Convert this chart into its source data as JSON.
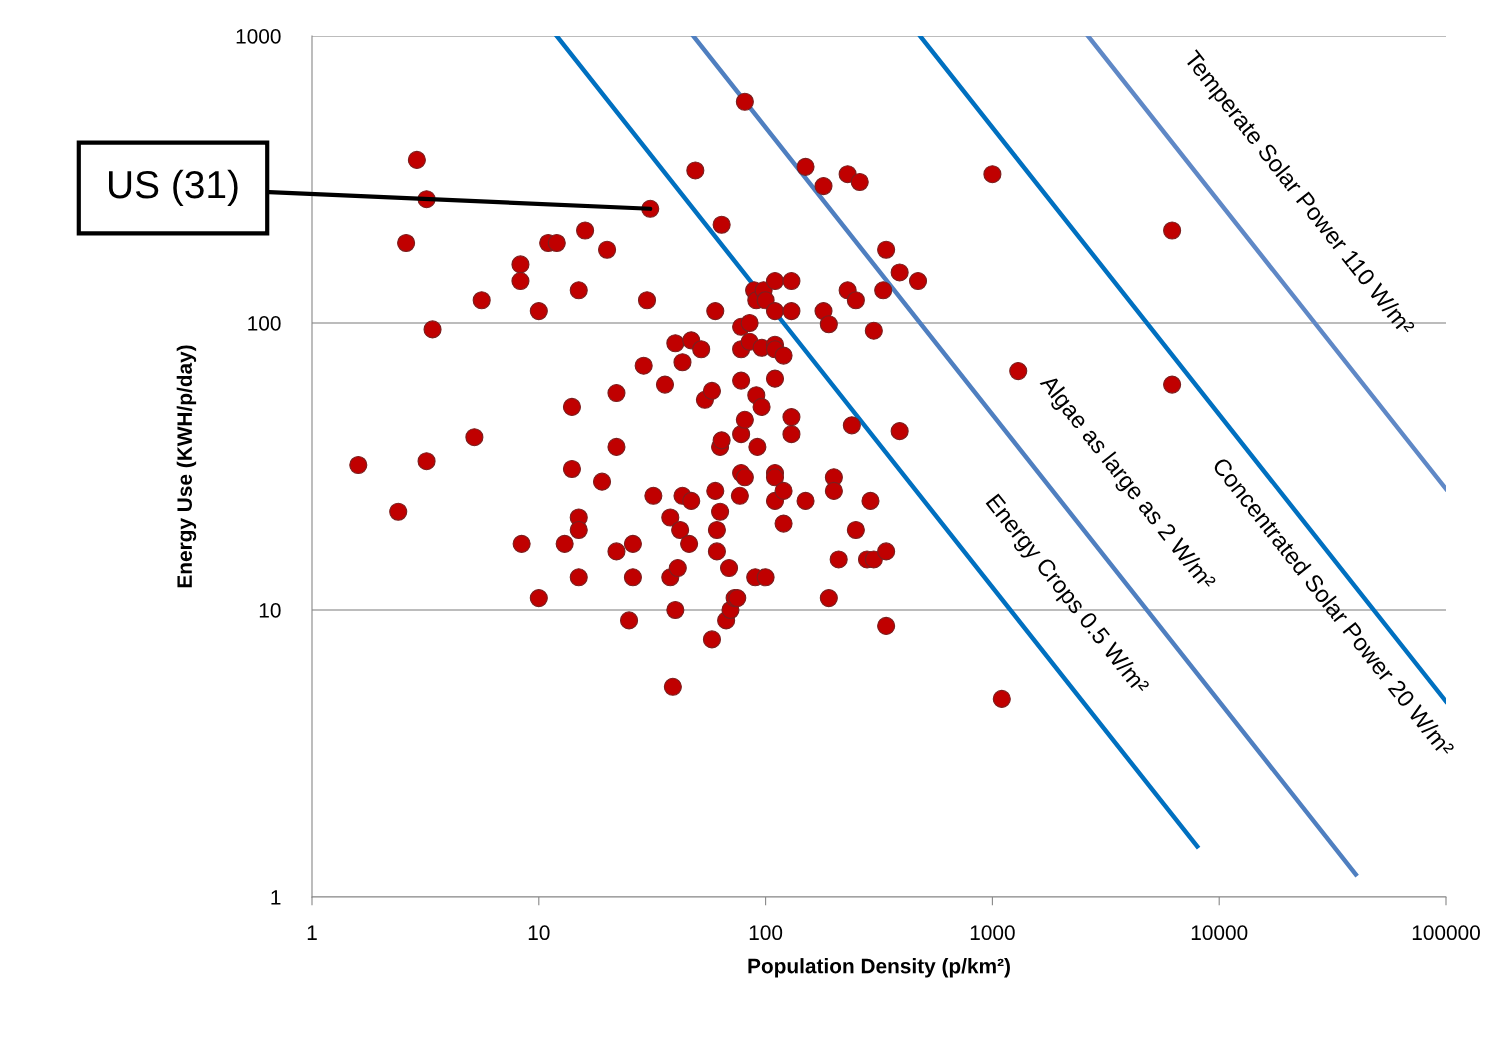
{
  "chart_data": {
    "type": "scatter",
    "xlabel": "Population Density (p/km²)",
    "ylabel": "Energy Use (KWH/p/day)",
    "log": "xy",
    "xlim": [
      1,
      100000
    ],
    "ylim": [
      1,
      1000
    ],
    "xticks": [
      1,
      10,
      100,
      1000,
      10000,
      100000
    ],
    "yticks": [
      1,
      10,
      100,
      1000
    ],
    "grid": "y",
    "legend": false,
    "marker": "circle",
    "annotations": [
      {
        "text": "US (31)",
        "x": 31,
        "y": 250
      }
    ],
    "series": [
      {
        "color": "#c00000",
        "x": [
          1.6,
          2.4,
          3.2,
          2.9,
          3.2,
          2.6,
          3.4,
          5.6,
          5.2,
          8.3,
          8.3,
          10,
          11,
          12,
          16,
          15,
          20,
          8.4,
          10,
          13,
          14,
          14,
          15,
          15,
          15,
          19,
          22,
          22,
          22,
          25,
          26,
          26,
          30,
          29,
          32,
          36,
          31,
          38,
          38,
          39,
          40,
          41,
          42,
          43,
          46,
          47,
          43,
          40,
          47,
          52,
          54,
          58,
          60,
          58,
          60,
          61,
          61,
          63,
          63,
          64,
          67,
          69,
          70,
          73,
          75,
          77,
          78,
          78,
          81,
          81,
          78,
          78,
          78,
          81,
          64,
          49,
          85,
          85,
          89,
          91,
          91,
          92,
          96,
          90,
          96,
          98,
          100,
          110,
          100,
          110,
          110,
          110,
          110,
          110,
          110,
          110,
          120,
          120,
          120,
          130,
          130,
          130,
          130,
          150,
          150,
          180,
          180,
          190,
          190,
          200,
          200,
          210,
          230,
          230,
          240,
          250,
          250,
          260,
          280,
          290,
          300,
          300,
          330,
          340,
          340,
          340,
          390,
          390,
          470,
          1000,
          1100,
          1300,
          6200,
          6200
        ],
        "values": [
          32,
          22,
          33,
          370,
          270,
          190,
          95,
          120,
          40,
          160,
          140,
          110,
          190,
          190,
          210,
          130,
          180,
          17,
          11,
          17,
          51,
          31,
          21,
          19,
          13,
          28,
          57,
          37,
          16,
          9.2,
          17,
          13,
          120,
          71,
          25,
          61,
          250,
          21,
          13,
          5.4,
          10,
          14,
          19,
          25,
          17,
          24,
          73,
          85,
          87,
          81,
          54,
          58,
          110,
          7.9,
          26,
          19,
          16,
          22,
          37,
          39,
          9.2,
          14,
          10,
          11,
          11,
          25,
          30,
          41,
          29,
          46,
          97,
          81,
          63,
          590,
          220,
          340,
          100,
          86,
          130,
          120,
          56,
          37,
          51,
          13,
          82,
          130,
          120,
          84,
          13,
          30,
          24,
          29,
          140,
          110,
          64,
          81,
          77,
          26,
          20,
          47,
          140,
          110,
          41,
          350,
          24,
          300,
          110,
          11,
          99,
          29,
          26,
          15,
          130,
          330,
          44,
          120,
          19,
          310,
          15,
          24,
          15,
          94,
          130,
          8.8,
          180,
          16,
          150,
          42,
          140,
          330,
          4.9,
          68,
          210,
          61
        ]
      },
      {
        "type": "line",
        "name": "Energy Crops 0.5 W/m²",
        "color": "#0070c0",
        "marker": "none",
        "x": [
          12,
          8000
        ],
        "values": [
          1000,
          1.5
        ]
      },
      {
        "type": "line",
        "name": "Algae as large as 2 W/m²",
        "color": "#4f7fc0",
        "marker": "none",
        "x": [
          48,
          40000
        ],
        "values": [
          1000,
          1.2
        ]
      },
      {
        "type": "line",
        "name": "Concentrated Solar Power 20 W/m²",
        "color": "#0070c0",
        "marker": "none",
        "x": [
          480,
          100000
        ],
        "values": [
          1000,
          4.8
        ]
      },
      {
        "type": "line",
        "name": "Temperate Solar Power 110 W/m²",
        "color": "#5f88c6",
        "marker": "none",
        "x": [
          2640,
          100000
        ],
        "values": [
          1000,
          26.4
        ]
      }
    ]
  }
}
